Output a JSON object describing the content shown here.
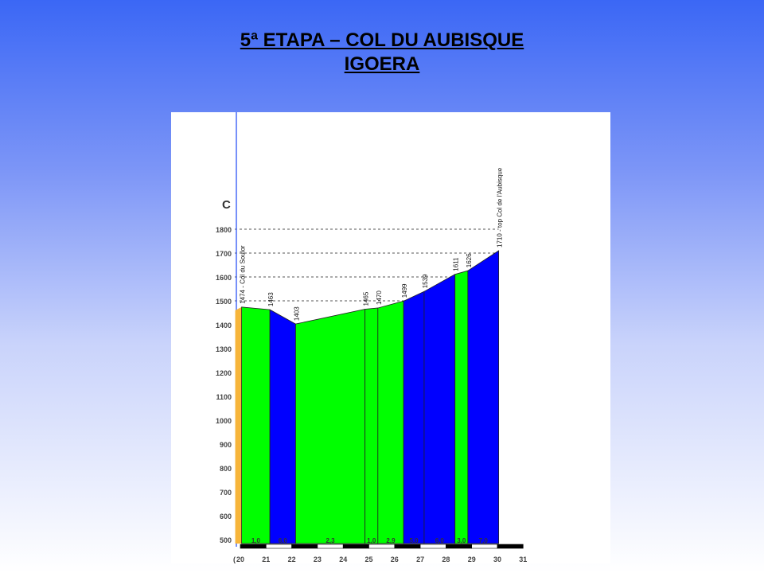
{
  "slide": {
    "title_line1": "5ª ETAPA – COL DU AUBISQUE",
    "title_line2": "IGOERA"
  },
  "chart_data": {
    "type": "area",
    "chart_corner_label": "C",
    "y_ticks": [
      500,
      600,
      700,
      800,
      900,
      1000,
      1100,
      1200,
      1300,
      1400,
      1500,
      1600,
      1700,
      1800
    ],
    "x_ticks": [
      20,
      21,
      22,
      23,
      24,
      25,
      26,
      27,
      28,
      29,
      30,
      31
    ],
    "x_tick_labels": [
      "20",
      "21",
      "22",
      "23",
      "24",
      "25",
      "26",
      "27",
      "28",
      "29",
      "30",
      "31"
    ],
    "x_start_fragment": "(",
    "ylim": [
      450,
      1800
    ],
    "xlim": [
      20,
      31
    ],
    "dashed_levels": [
      1500,
      1600,
      1700,
      1800
    ],
    "leading_segment": {
      "x_start": 19.8,
      "x_end": 20.05,
      "color": "#f7b53a"
    },
    "points": [
      {
        "x": 20.05,
        "y": 1474,
        "label": "1474 - Col du Soulor"
      },
      {
        "x": 21.15,
        "y": 1463,
        "label": "1463"
      },
      {
        "x": 22.15,
        "y": 1403,
        "label": "1403"
      },
      {
        "x": 24.85,
        "y": 1465,
        "label": "1465"
      },
      {
        "x": 25.35,
        "y": 1470,
        "label": "1470"
      },
      {
        "x": 26.35,
        "y": 1499,
        "label": "1499"
      },
      {
        "x": 27.15,
        "y": 1539,
        "label": "1539"
      },
      {
        "x": 28.35,
        "y": 1611,
        "label": "1611"
      },
      {
        "x": 28.85,
        "y": 1626,
        "label": "1626"
      },
      {
        "x": 30.05,
        "y": 1710,
        "label": "1710 - top Col de l'Aubisque"
      }
    ],
    "segments": [
      {
        "gradient": "1,0",
        "color": "#00ff00"
      },
      {
        "gradient": "6,0",
        "color": "#0000ff"
      },
      {
        "gradient": "2,3",
        "color": "#00ff00"
      },
      {
        "gradient": "1,0",
        "color": "#00ff00"
      },
      {
        "gradient": "2,9",
        "color": "#00ff00"
      },
      {
        "gradient": "5,0",
        "color": "#0000ff"
      },
      {
        "gradient": "6,0",
        "color": "#0000ff"
      },
      {
        "gradient": "3,0",
        "color": "#00ff00"
      },
      {
        "gradient": "7,0",
        "color": "#0000ff"
      }
    ],
    "vertical_marker_color": "#4a6cf7"
  }
}
